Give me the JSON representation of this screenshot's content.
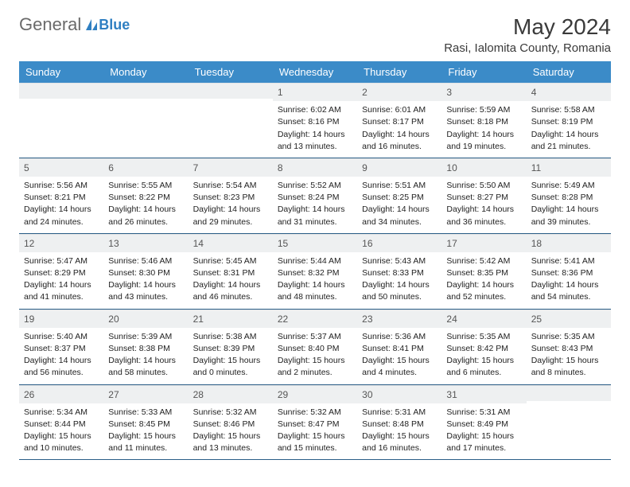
{
  "logo": {
    "text1": "General",
    "text2": "Blue"
  },
  "title": "May 2024",
  "location": "Rasi, Ialomita County, Romania",
  "weekdays": [
    "Sunday",
    "Monday",
    "Tuesday",
    "Wednesday",
    "Thursday",
    "Friday",
    "Saturday"
  ],
  "colors": {
    "headerBg": "#3b8bc8",
    "rowDivider": "#2b5e88",
    "dayNumBg": "#eef0f1"
  },
  "weeks": [
    [
      {
        "n": "",
        "sr": "",
        "ss": "",
        "dl1": "",
        "dl2": ""
      },
      {
        "n": "",
        "sr": "",
        "ss": "",
        "dl1": "",
        "dl2": ""
      },
      {
        "n": "",
        "sr": "",
        "ss": "",
        "dl1": "",
        "dl2": ""
      },
      {
        "n": "1",
        "sr": "Sunrise: 6:02 AM",
        "ss": "Sunset: 8:16 PM",
        "dl1": "Daylight: 14 hours",
        "dl2": "and 13 minutes."
      },
      {
        "n": "2",
        "sr": "Sunrise: 6:01 AM",
        "ss": "Sunset: 8:17 PM",
        "dl1": "Daylight: 14 hours",
        "dl2": "and 16 minutes."
      },
      {
        "n": "3",
        "sr": "Sunrise: 5:59 AM",
        "ss": "Sunset: 8:18 PM",
        "dl1": "Daylight: 14 hours",
        "dl2": "and 19 minutes."
      },
      {
        "n": "4",
        "sr": "Sunrise: 5:58 AM",
        "ss": "Sunset: 8:19 PM",
        "dl1": "Daylight: 14 hours",
        "dl2": "and 21 minutes."
      }
    ],
    [
      {
        "n": "5",
        "sr": "Sunrise: 5:56 AM",
        "ss": "Sunset: 8:21 PM",
        "dl1": "Daylight: 14 hours",
        "dl2": "and 24 minutes."
      },
      {
        "n": "6",
        "sr": "Sunrise: 5:55 AM",
        "ss": "Sunset: 8:22 PM",
        "dl1": "Daylight: 14 hours",
        "dl2": "and 26 minutes."
      },
      {
        "n": "7",
        "sr": "Sunrise: 5:54 AM",
        "ss": "Sunset: 8:23 PM",
        "dl1": "Daylight: 14 hours",
        "dl2": "and 29 minutes."
      },
      {
        "n": "8",
        "sr": "Sunrise: 5:52 AM",
        "ss": "Sunset: 8:24 PM",
        "dl1": "Daylight: 14 hours",
        "dl2": "and 31 minutes."
      },
      {
        "n": "9",
        "sr": "Sunrise: 5:51 AM",
        "ss": "Sunset: 8:25 PM",
        "dl1": "Daylight: 14 hours",
        "dl2": "and 34 minutes."
      },
      {
        "n": "10",
        "sr": "Sunrise: 5:50 AM",
        "ss": "Sunset: 8:27 PM",
        "dl1": "Daylight: 14 hours",
        "dl2": "and 36 minutes."
      },
      {
        "n": "11",
        "sr": "Sunrise: 5:49 AM",
        "ss": "Sunset: 8:28 PM",
        "dl1": "Daylight: 14 hours",
        "dl2": "and 39 minutes."
      }
    ],
    [
      {
        "n": "12",
        "sr": "Sunrise: 5:47 AM",
        "ss": "Sunset: 8:29 PM",
        "dl1": "Daylight: 14 hours",
        "dl2": "and 41 minutes."
      },
      {
        "n": "13",
        "sr": "Sunrise: 5:46 AM",
        "ss": "Sunset: 8:30 PM",
        "dl1": "Daylight: 14 hours",
        "dl2": "and 43 minutes."
      },
      {
        "n": "14",
        "sr": "Sunrise: 5:45 AM",
        "ss": "Sunset: 8:31 PM",
        "dl1": "Daylight: 14 hours",
        "dl2": "and 46 minutes."
      },
      {
        "n": "15",
        "sr": "Sunrise: 5:44 AM",
        "ss": "Sunset: 8:32 PM",
        "dl1": "Daylight: 14 hours",
        "dl2": "and 48 minutes."
      },
      {
        "n": "16",
        "sr": "Sunrise: 5:43 AM",
        "ss": "Sunset: 8:33 PM",
        "dl1": "Daylight: 14 hours",
        "dl2": "and 50 minutes."
      },
      {
        "n": "17",
        "sr": "Sunrise: 5:42 AM",
        "ss": "Sunset: 8:35 PM",
        "dl1": "Daylight: 14 hours",
        "dl2": "and 52 minutes."
      },
      {
        "n": "18",
        "sr": "Sunrise: 5:41 AM",
        "ss": "Sunset: 8:36 PM",
        "dl1": "Daylight: 14 hours",
        "dl2": "and 54 minutes."
      }
    ],
    [
      {
        "n": "19",
        "sr": "Sunrise: 5:40 AM",
        "ss": "Sunset: 8:37 PM",
        "dl1": "Daylight: 14 hours",
        "dl2": "and 56 minutes."
      },
      {
        "n": "20",
        "sr": "Sunrise: 5:39 AM",
        "ss": "Sunset: 8:38 PM",
        "dl1": "Daylight: 14 hours",
        "dl2": "and 58 minutes."
      },
      {
        "n": "21",
        "sr": "Sunrise: 5:38 AM",
        "ss": "Sunset: 8:39 PM",
        "dl1": "Daylight: 15 hours",
        "dl2": "and 0 minutes."
      },
      {
        "n": "22",
        "sr": "Sunrise: 5:37 AM",
        "ss": "Sunset: 8:40 PM",
        "dl1": "Daylight: 15 hours",
        "dl2": "and 2 minutes."
      },
      {
        "n": "23",
        "sr": "Sunrise: 5:36 AM",
        "ss": "Sunset: 8:41 PM",
        "dl1": "Daylight: 15 hours",
        "dl2": "and 4 minutes."
      },
      {
        "n": "24",
        "sr": "Sunrise: 5:35 AM",
        "ss": "Sunset: 8:42 PM",
        "dl1": "Daylight: 15 hours",
        "dl2": "and 6 minutes."
      },
      {
        "n": "25",
        "sr": "Sunrise: 5:35 AM",
        "ss": "Sunset: 8:43 PM",
        "dl1": "Daylight: 15 hours",
        "dl2": "and 8 minutes."
      }
    ],
    [
      {
        "n": "26",
        "sr": "Sunrise: 5:34 AM",
        "ss": "Sunset: 8:44 PM",
        "dl1": "Daylight: 15 hours",
        "dl2": "and 10 minutes."
      },
      {
        "n": "27",
        "sr": "Sunrise: 5:33 AM",
        "ss": "Sunset: 8:45 PM",
        "dl1": "Daylight: 15 hours",
        "dl2": "and 11 minutes."
      },
      {
        "n": "28",
        "sr": "Sunrise: 5:32 AM",
        "ss": "Sunset: 8:46 PM",
        "dl1": "Daylight: 15 hours",
        "dl2": "and 13 minutes."
      },
      {
        "n": "29",
        "sr": "Sunrise: 5:32 AM",
        "ss": "Sunset: 8:47 PM",
        "dl1": "Daylight: 15 hours",
        "dl2": "and 15 minutes."
      },
      {
        "n": "30",
        "sr": "Sunrise: 5:31 AM",
        "ss": "Sunset: 8:48 PM",
        "dl1": "Daylight: 15 hours",
        "dl2": "and 16 minutes."
      },
      {
        "n": "31",
        "sr": "Sunrise: 5:31 AM",
        "ss": "Sunset: 8:49 PM",
        "dl1": "Daylight: 15 hours",
        "dl2": "and 17 minutes."
      },
      {
        "n": "",
        "sr": "",
        "ss": "",
        "dl1": "",
        "dl2": ""
      }
    ]
  ]
}
